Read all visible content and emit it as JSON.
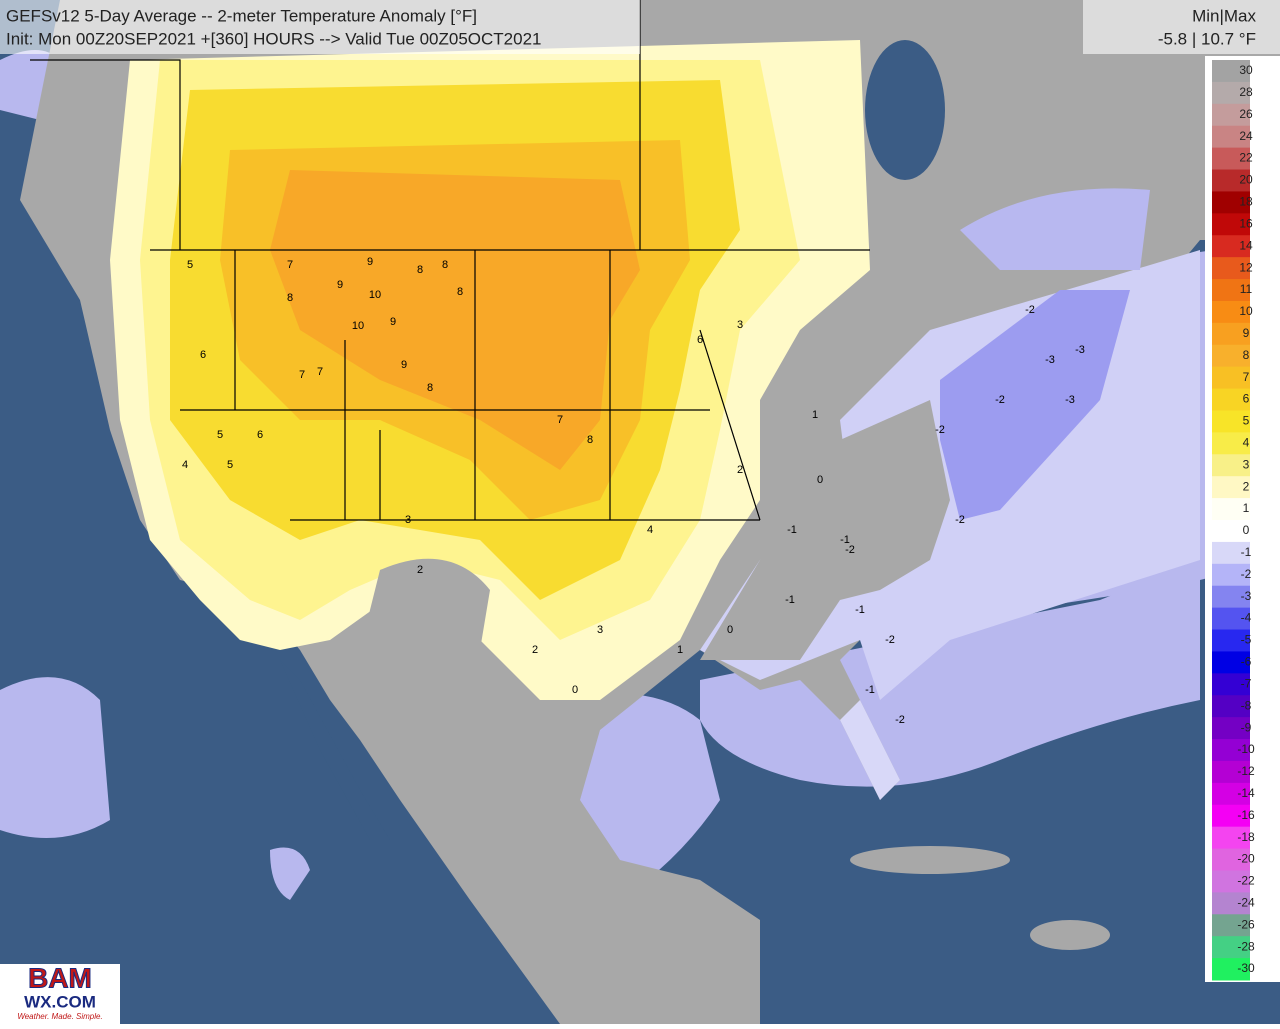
{
  "header": {
    "title": "GEFSv12 5-Day Average -- 2-meter Temperature Anomaly [°F]",
    "subtitle": "Init: Mon 00Z20SEP2021 +[360] HOURS --> Valid Tue 00Z05OCT2021",
    "minmax_label": "Min|Max",
    "minmax_value": "-5.8 | 10.7 °F"
  },
  "colorbar": {
    "levels": [
      30,
      28,
      26,
      24,
      22,
      20,
      18,
      16,
      14,
      12,
      11,
      10,
      9,
      8,
      7,
      6,
      5,
      4,
      3,
      2,
      1,
      0,
      -1,
      -2,
      -3,
      -4,
      -5,
      -6,
      -7,
      -8,
      -9,
      -10,
      -12,
      -14,
      -16,
      -18,
      -20,
      -22,
      -24,
      -26,
      -28,
      -30
    ],
    "colors": [
      "#a3a3a3",
      "#b4aaaa",
      "#c49c9c",
      "#c98484",
      "#c85a5a",
      "#b82a2a",
      "#a00000",
      "#c00808",
      "#d82a20",
      "#e85a1c",
      "#f07414",
      "#f88c14",
      "#f8a020",
      "#f8b02c",
      "#f8c024",
      "#f8d424",
      "#f8e428",
      "#f8ec48",
      "#f8f088",
      "#fff8c4",
      "#fffff4",
      "#ffffff",
      "#d8d8f8",
      "#b4b4f8",
      "#8484f0",
      "#5454f0",
      "#2828f0",
      "#0000e4",
      "#3400d4",
      "#5400c4",
      "#7400c4",
      "#9400d4",
      "#b400d4",
      "#d400e4",
      "#f400f4",
      "#f444f0",
      "#e064e0",
      "#d074e0",
      "#b484d0",
      "#74a490",
      "#44d084",
      "#20f060"
    ]
  },
  "point_labels": [
    10,
    9,
    9,
    10,
    9,
    8,
    9,
    8,
    8,
    8,
    7,
    7,
    8,
    7,
    6,
    5,
    5,
    6,
    5,
    4,
    3,
    2,
    3,
    2,
    1,
    0,
    -1,
    -1,
    0,
    -1,
    -2,
    -1,
    -2,
    -2,
    -3,
    -2,
    -3,
    -3,
    -2,
    -2,
    -1,
    -2,
    7,
    8,
    6,
    4,
    3,
    2,
    1,
    0
  ],
  "logo": {
    "line1": "BAM",
    "line2": "WX.COM",
    "line3": "Weather. Made. Simple."
  }
}
